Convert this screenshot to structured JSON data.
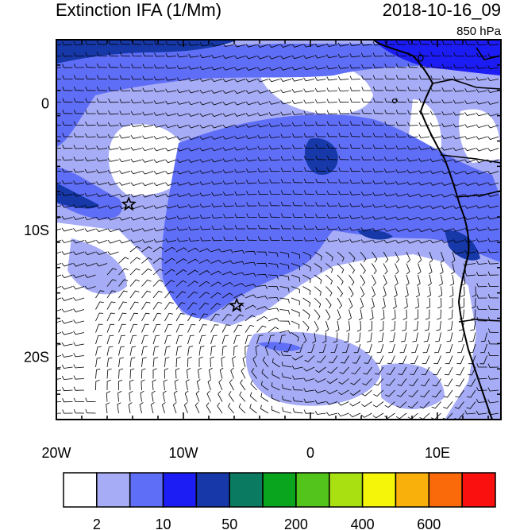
{
  "header": {
    "title": "Extinction IFA (1/Mm)",
    "datetime": "2018-10-16_09",
    "level": "850 hPa"
  },
  "map": {
    "x_ticks": [
      {
        "lon": -20,
        "label": "20W"
      },
      {
        "lon": -10,
        "label": "10W"
      },
      {
        "lon": 0,
        "label": "0"
      },
      {
        "lon": 10,
        "label": "10E"
      }
    ],
    "y_ticks": [
      {
        "lat": 0,
        "label": "0"
      },
      {
        "lat": -10,
        "label": "10S"
      },
      {
        "lat": -20,
        "label": "20S"
      }
    ],
    "lon_range": [
      -20,
      15
    ],
    "lat_range": [
      -25,
      5
    ],
    "markers": [
      {
        "type": "star",
        "lon": -14.3,
        "lat": -8.0
      },
      {
        "type": "star",
        "lon": -5.8,
        "lat": -16.0
      }
    ]
  },
  "colorbar": {
    "colors": [
      "#ffffff",
      "#a6acf5",
      "#5f6ef6",
      "#1c1cf4",
      "#1638a8",
      "#0a7a60",
      "#0aa51e",
      "#52c41c",
      "#a8e012",
      "#f5f50a",
      "#f9b00a",
      "#fb6a0a",
      "#fb1010"
    ],
    "labels": [
      "2",
      "10",
      "50",
      "200",
      "400",
      "600"
    ]
  }
}
